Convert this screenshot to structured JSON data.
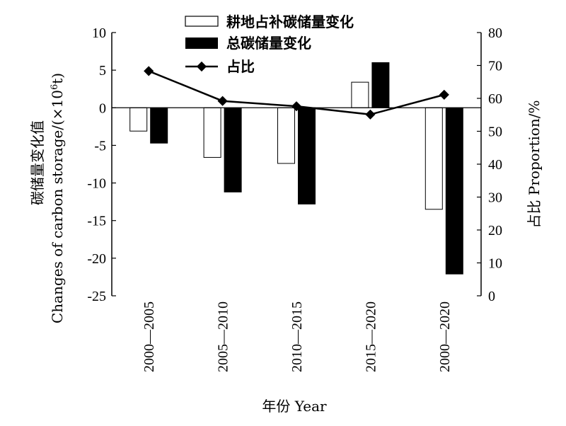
{
  "chart_data": {
    "type": "bar",
    "categories": [
      "2000—2005",
      "2005—2010",
      "2010—2015",
      "2015—2020",
      "2000—2020"
    ],
    "series": [
      {
        "name": "耕地占补碳储量变化",
        "type": "bar",
        "axis": "left",
        "fill": "#ffffff",
        "stroke": "#000000",
        "values": [
          -3.1,
          -6.6,
          -7.4,
          3.4,
          -13.5
        ]
      },
      {
        "name": "总碳储量变化",
        "type": "bar",
        "axis": "left",
        "fill": "#000000",
        "stroke": "#000000",
        "values": [
          -4.7,
          -11.2,
          -12.8,
          6.0,
          -22.1
        ]
      },
      {
        "name": "占比",
        "type": "line",
        "axis": "right",
        "marker": "diamond",
        "color": "#000000",
        "values": [
          68.3,
          59.2,
          57.6,
          55.1,
          61.1
        ]
      }
    ],
    "y_left": {
      "label_zh": "碳储量变化值",
      "label_en_prefix": "Changes of carbon storage/(×10",
      "label_en_sup": "6",
      "label_en_suffix": "t)",
      "lim": [
        -25,
        10
      ],
      "ticks": [
        "10",
        "5",
        "0",
        "-5",
        "-10",
        "-15",
        "-20",
        "-25"
      ],
      "tick_values": [
        10,
        5,
        0,
        -5,
        -10,
        -15,
        -20,
        -25
      ]
    },
    "y_right": {
      "label": "占比 Proportion/%",
      "lim": [
        0,
        80
      ],
      "ticks": [
        "80",
        "70",
        "60",
        "50",
        "40",
        "30",
        "20",
        "10",
        "0"
      ],
      "tick_values": [
        80,
        70,
        60,
        50,
        40,
        30,
        20,
        10,
        0
      ]
    },
    "xlabel": "年份 Year",
    "legend": {
      "position": "top",
      "entries": [
        "耕地占补碳储量变化",
        "总碳储量变化",
        "占比"
      ]
    },
    "grid": false
  }
}
